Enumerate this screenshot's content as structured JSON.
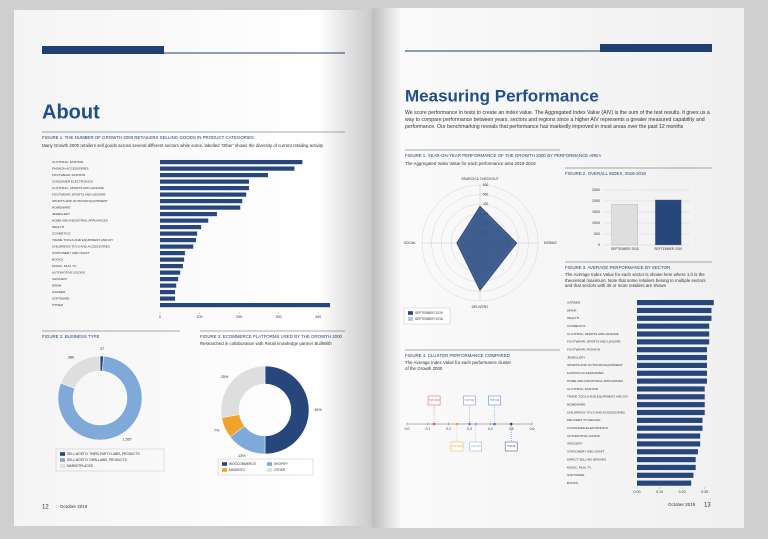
{
  "pages": [
    {
      "title": "About",
      "page_number": 12,
      "date": "October 2019"
    },
    {
      "title": "Measuring Performance",
      "intro": "We score performance in tests to create an index value. The Aggregated Index Value (AIV) is the sum of the test results. It gives us a way to compare performance between years, sectors and regions since a higher AIV represents a greater measured capability and performance. Our benchmarking reveals that performance has markedly improved in most areas over the past 12 months",
      "date": "October 2019",
      "page_number": 13
    }
  ],
  "chart_data": [
    {
      "type": "bar",
      "horizontal": true,
      "title": "FIGURE 1. THE NUMBER OF GROWTH 2000 RETAILERS SELLING GOODS IN PRODUCT CATEGORIES",
      "subtitle": "Many Growth 2000 retailers sell goods across several different sectors while some, labelled ‘Other’ shows the diversity of current retailing activity",
      "categories": [
        "CLOTHING; FASHION",
        "FASHION ACCESSORIES",
        "FOOTWEAR; FASHION",
        "CONSUMER ELECTRONICS",
        "CLOTHING; SPORTS AND LEISURE",
        "FOOTWEAR; SPORTS AND LEISURE",
        "SPORTS AND OUTDOOR EQUIPMENT",
        "HOMEWARE",
        "JEWELLERY",
        "HOME AND INDUSTRIAL APPLIANCES",
        "HEALTH",
        "COSMETICS",
        "TRADE TOOLS AND EQUIPMENT AND DIY",
        "CHILDREN'S TOYS AND ACCESSORIES",
        "STATIONERY AND CRAFT",
        "BOOKS",
        "MUSIC, FILM, TV",
        "AUTOMOTIVE GOODS",
        "GROCERY",
        "DRINK",
        "GARDEN",
        "SOFTWARE",
        "OTHER"
      ],
      "values": [
        360,
        340,
        273,
        225,
        225,
        218,
        208,
        203,
        144,
        122,
        104,
        94,
        91,
        84,
        63,
        61,
        58,
        51,
        46,
        41,
        38,
        38,
        430
      ],
      "color": "#27467c",
      "xlim": [
        0,
        440
      ],
      "xticks": [
        0,
        100,
        200,
        300,
        400
      ]
    },
    {
      "type": "pie",
      "donut": true,
      "title": "FIGURE 2. BUSINESS TYPE",
      "categories": [
        "SELL MOSTLY THIRD-PARTY-LABEL PRODUCTS",
        "SELL MOSTLY OWN-LABEL PRODUCTS",
        "MARKETPLACES"
      ],
      "values": [
        27,
        1567,
        380
      ],
      "value_labels": [
        "27",
        "1,567",
        "380"
      ],
      "colors": [
        "#27467c",
        "#7fa9d9",
        "#dedede"
      ]
    },
    {
      "type": "pie",
      "donut": true,
      "title": "FIGURE 3. ECOMMERCE PLATFORMS USED BY THE GROWTH 2000",
      "subtitle": "Researched in collaboration with Retail knowledge partner BuiltWith",
      "categories": [
        "WOOCOMMERCE",
        "SHOPIFY",
        "MAGENTO",
        "OTHER"
      ],
      "values": [
        45,
        13,
        7,
        25
      ],
      "value_labels": [
        "45%",
        "13%",
        "7%",
        "25%"
      ],
      "colors": [
        "#27467c",
        "#7fa9d9",
        "#f0a42c",
        "#dedede"
      ]
    },
    {
      "type": "radar",
      "title": "FIGURE 1. YEAR-ON-YEAR PERFORMANCE OF THE GROWTH 2000 BY PERFORMANCE AREA",
      "subtitle": "The Aggregated Index Value for each performance area 2018-2019",
      "categories": [
        "SEARCH & CHECKOUT",
        "MOBILE",
        "DELIVERY",
        "SOCIAL"
      ],
      "rlim": [
        0,
        600
      ],
      "rticks": [
        100,
        200,
        300,
        400,
        500,
        600
      ],
      "series": [
        {
          "name": "SEPTEMBER 2019",
          "color": "#27467c",
          "values": [
            380,
            380,
            490,
            240
          ]
        },
        {
          "name": "SEPTEMBER 2018",
          "color": "#a9c4e6",
          "values": [
            320,
            330,
            440,
            200
          ]
        }
      ]
    },
    {
      "type": "bar",
      "title": "FIGURE 2. OVERALL INDEX, 2018-2019",
      "categories": [
        "SEPTEMBER 2018",
        "SEPTEMBER 2019"
      ],
      "values": [
        1850,
        2050
      ],
      "colors": [
        "#dedede",
        "#27467c"
      ],
      "ylim": [
        0,
        2500
      ],
      "yticks": [
        0,
        500,
        1000,
        1500,
        2000,
        2500
      ],
      "grid": true
    },
    {
      "type": "bar",
      "horizontal": true,
      "title": "FIGURE 3. AVERAGE PERFORMANCE BY SECTOR",
      "subtitle": "The Average Index Value for each sector is shown here where 1.0 is the theoretical maximum. Note that some retailers belong to multiple sectors and that sectors with 30 or more retailers are shown",
      "categories": [
        "GARDEN",
        "DRINK",
        "HEALTH",
        "COSMETICS",
        "CLOTHING; SPORTS AND LEISURE",
        "FOOTWEAR; SPORTS AND LEISURE",
        "FOOTWEAR; FASHION",
        "JEWELLERY",
        "SPORTS AND OUTDOOR EQUIPMENT",
        "FASHION ACCESSORIES",
        "HOME AND INDUSTRIAL APPLIANCES",
        "CLOTHING; FASHION",
        "TRADE TOOLS AND EQUIPMENT AND DIY",
        "HOMEWARE",
        "CHILDREN'S TOYS AND ACCESSORIES",
        "DELIVERS TO REGION",
        "CONSUMER ELECTRONICS",
        "AUTOMOTIVE GOODS",
        "GROCERY",
        "STATIONERY AND CRAFT",
        "DIRECT SELLING BRANDS",
        "MUSIC, FILM, TV",
        "SOFTWARE",
        "BOOKS"
      ],
      "values": [
        0.34,
        0.33,
        0.33,
        0.32,
        0.32,
        0.32,
        0.31,
        0.31,
        0.31,
        0.31,
        0.31,
        0.3,
        0.3,
        0.3,
        0.3,
        0.29,
        0.29,
        0.28,
        0.28,
        0.27,
        0.26,
        0.26,
        0.25,
        0.24
      ],
      "color": "#27467c",
      "xlim": [
        0,
        0.35
      ],
      "xticks": [
        {
          "value": 0,
          "label": "0.00"
        },
        {
          "value": 0.1,
          "label": "0.10"
        },
        {
          "value": 0.2,
          "label": "0.20"
        },
        {
          "value": 0.3,
          "label": "0.30"
        }
      ]
    },
    {
      "type": "strip",
      "title": "FIGURE 4. CLUSTER PERFORMANCE COMPARED",
      "subtitle": "The Average Index Value for each performance cluster of the Growth 2000",
      "categories": [
        "TOP 2000",
        "TOP 1000",
        "TOP 500",
        "TOP 250",
        "TOP 100",
        "TOP 50"
      ],
      "values": [
        0.13,
        0.24,
        0.3,
        0.33,
        0.42,
        0.5
      ],
      "colors": [
        "#d9534f",
        "#f0a42c",
        "#8e6bb8",
        "#7fa9d9",
        "#3f78c2",
        "#27467c"
      ],
      "xlim": [
        0,
        0.6
      ],
      "xticks": [
        {
          "value": 0,
          "label": "0.0"
        },
        {
          "value": 0.1,
          "label": "0.1"
        },
        {
          "value": 0.2,
          "label": "0.2"
        },
        {
          "value": 0.3,
          "label": "0.3"
        },
        {
          "value": 0.4,
          "label": "0.4"
        },
        {
          "value": 0.5,
          "label": "0.5"
        },
        {
          "value": 0.6,
          "label": "0.6"
        }
      ]
    }
  ]
}
